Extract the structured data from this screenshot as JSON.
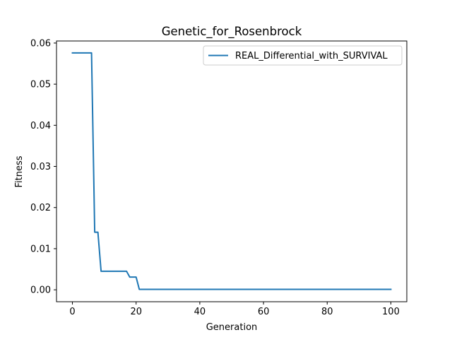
{
  "chart_data": {
    "type": "line",
    "title": "Genetic_for_Rosenbrock",
    "xlabel": "Generation",
    "ylabel": "Fitness",
    "xlim": [
      -5,
      105
    ],
    "ylim": [
      -0.0029,
      0.0605
    ],
    "xticks": [
      0,
      20,
      40,
      60,
      80,
      100
    ],
    "xtick_labels": [
      "0",
      "20",
      "40",
      "60",
      "80",
      "100"
    ],
    "yticks": [
      0.0,
      0.01,
      0.02,
      0.03,
      0.04,
      0.05,
      0.06
    ],
    "ytick_labels": [
      "0.00",
      "0.01",
      "0.02",
      "0.03",
      "0.04",
      "0.05",
      "0.06"
    ],
    "grid": false,
    "legend": "top-right",
    "series": [
      {
        "name": "REAL_Differential_with_SURVIVAL",
        "color": "#1f77b4",
        "x": [
          0,
          1,
          2,
          3,
          4,
          5,
          6,
          7,
          8,
          9,
          10,
          11,
          12,
          13,
          14,
          15,
          16,
          17,
          18,
          19,
          20,
          21,
          22,
          23,
          24,
          25,
          26,
          27,
          28,
          29,
          30,
          31,
          32,
          33,
          34,
          35,
          36,
          37,
          38,
          39,
          40,
          41,
          42,
          43,
          44,
          45,
          46,
          47,
          48,
          49,
          50,
          51,
          52,
          53,
          54,
          55,
          56,
          57,
          58,
          59,
          60,
          61,
          62,
          63,
          64,
          65,
          66,
          67,
          68,
          69,
          70,
          71,
          72,
          73,
          74,
          75,
          76,
          77,
          78,
          79,
          80,
          81,
          82,
          83,
          84,
          85,
          86,
          87,
          88,
          89,
          90,
          91,
          92,
          93,
          94,
          95,
          96,
          97,
          98,
          99,
          100
        ],
        "y": [
          0.0576,
          0.0576,
          0.0576,
          0.0576,
          0.0576,
          0.0576,
          0.0576,
          0.014,
          0.014,
          0.0045,
          0.0045,
          0.0045,
          0.0045,
          0.0045,
          0.0045,
          0.0045,
          0.0045,
          0.0045,
          0.0031,
          0.0031,
          0.0031,
          0.0001,
          0.0001,
          0.0001,
          0.0001,
          0.0001,
          0.0001,
          0.0001,
          0.0001,
          0.0001,
          0.0001,
          0.0001,
          0.0001,
          0.0001,
          0.0001,
          0.0001,
          0.0001,
          0.0001,
          0.0001,
          0.0001,
          0.0001,
          0.0001,
          0.0001,
          0.0001,
          0.0001,
          0.0001,
          0.0001,
          0.0001,
          0.0001,
          0.0001,
          0.0001,
          0.0001,
          0.0001,
          0.0001,
          0.0001,
          0.0001,
          0.0001,
          0.0001,
          0.0001,
          0.0001,
          0.0001,
          0.0001,
          0.0001,
          0.0001,
          0.0001,
          0.0001,
          0.0001,
          0.0001,
          0.0001,
          0.0001,
          0.0001,
          0.0001,
          0.0001,
          0.0001,
          0.0001,
          0.0001,
          0.0001,
          0.0001,
          0.0001,
          0.0001,
          0.0001,
          0.0001,
          0.0001,
          0.0001,
          0.0001,
          0.0001,
          0.0001,
          0.0001,
          0.0001,
          0.0001,
          0.0001,
          0.0001,
          0.0001,
          0.0001,
          0.0001,
          0.0001,
          0.0001,
          0.0001,
          0.0001,
          0.0001,
          0.0001
        ]
      }
    ]
  }
}
